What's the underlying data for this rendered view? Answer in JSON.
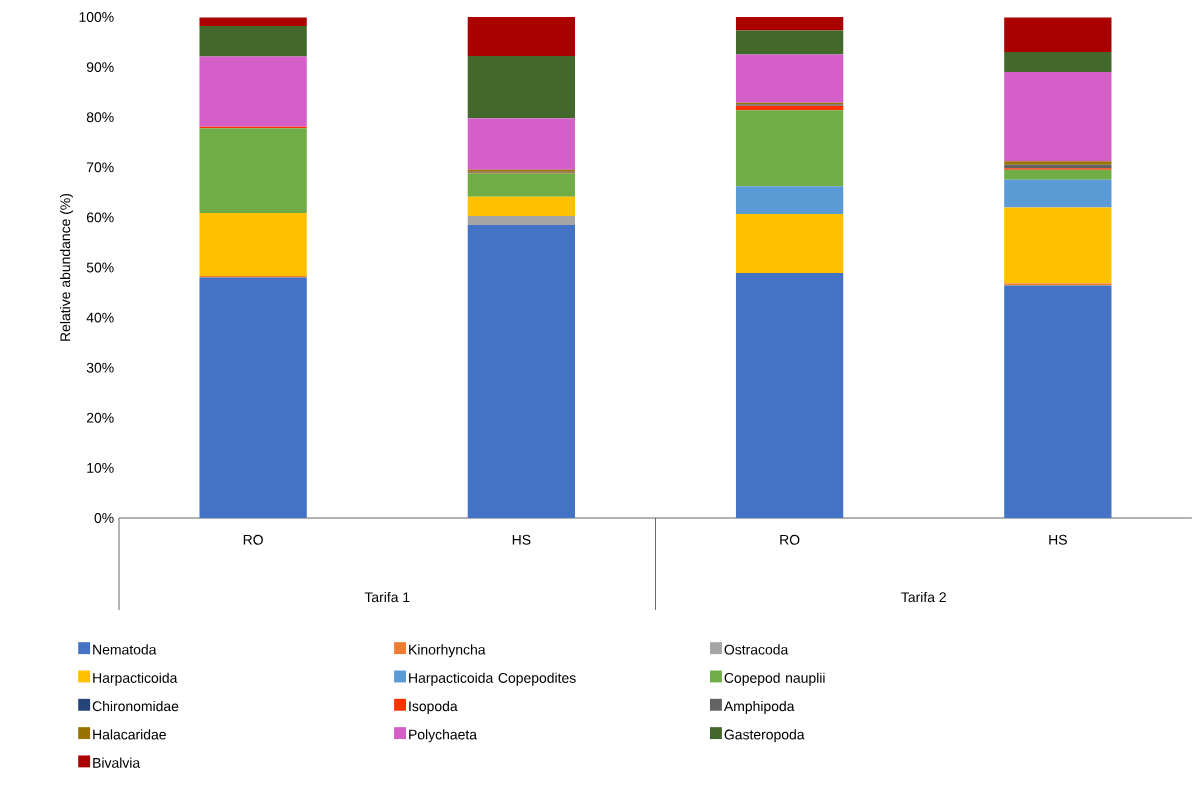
{
  "chart_data": {
    "type": "bar",
    "stacked": true,
    "ylabel": "Relative abundance (%)",
    "categories": [
      "RO",
      "HS",
      "RO",
      "HS"
    ],
    "annotations": [
      "Tarifa 1",
      "Tarifa 2"
    ],
    "ylim": [
      0,
      100
    ],
    "yticks": [
      {
        "value": 0,
        "label": "0%"
      },
      {
        "value": 10,
        "label": "10%"
      },
      {
        "value": 20,
        "label": "20%"
      },
      {
        "value": 30,
        "label": "30%"
      },
      {
        "value": 40,
        "label": "40%"
      },
      {
        "value": 50,
        "label": "50%"
      },
      {
        "value": 60,
        "label": "60%"
      },
      {
        "value": 70,
        "label": "70%"
      },
      {
        "value": 80,
        "label": "80%"
      },
      {
        "value": 90,
        "label": "90%"
      },
      {
        "value": 100,
        "label": "100%"
      }
    ],
    "legend": "bottom",
    "grid": false,
    "series": [
      {
        "name": "Nematoda",
        "color": "#4472c4",
        "values": [
          48.0,
          58.5,
          48.9,
          46.4
        ]
      },
      {
        "name": "Kinorhyncha",
        "color": "#ed7d31",
        "values": [
          0.3,
          0,
          0,
          0.4
        ]
      },
      {
        "name": "Ostracoda",
        "color": "#a5a5a5",
        "values": [
          0,
          1.8,
          0,
          0
        ]
      },
      {
        "name": "Harpacticoida",
        "color": "#ffc000",
        "values": [
          12.6,
          3.8,
          11.8,
          15.2
        ]
      },
      {
        "name": "Harpacticoida Copepodites",
        "color": "#5b9bd5",
        "values": [
          0,
          0,
          5.5,
          5.5
        ]
      },
      {
        "name": "Copepod nauplii",
        "color": "#70ad47",
        "values": [
          16.9,
          4.7,
          15.2,
          2.0
        ]
      },
      {
        "name": "Chironomidae",
        "color": "#264478",
        "values": [
          0,
          0,
          0,
          null
        ]
      },
      {
        "name": "Isopoda",
        "color": "#ff3300",
        "values": [
          0.3,
          0.1,
          0.9,
          0.3
        ]
      },
      {
        "name": "Amphipoda",
        "color": "#636363",
        "values": [
          0,
          0.2,
          0.3,
          0.7
        ]
      },
      {
        "name": "Halacaridae",
        "color": "#997300",
        "values": [
          null,
          0.4,
          0.3,
          0.7
        ]
      },
      {
        "name": "Polychaeta",
        "color": "#d45fc8",
        "values": [
          14.0,
          10.3,
          9.6,
          17.8
        ]
      },
      {
        "name": "Gasteropoda",
        "color": "#43682b",
        "values": [
          6.1,
          12.4,
          4.8,
          4.0
        ]
      },
      {
        "name": "Bivalvia",
        "color": "#aa0000",
        "values": [
          1.7,
          7.8,
          2.7,
          6.9
        ]
      }
    ]
  }
}
